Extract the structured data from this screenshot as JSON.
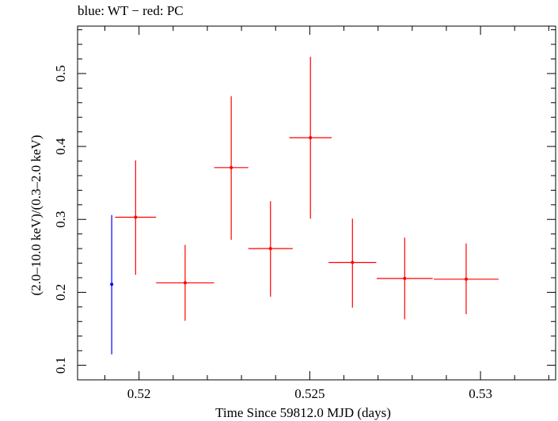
{
  "chart_data": {
    "type": "scatter",
    "title": "blue: WT − red: PC",
    "xlabel": "Time Since 59812.0 MJD (days)",
    "ylabel": "(2.0–10.0 keV)/(0.3–2.0 keV)",
    "xlim": [
      0.5182,
      0.5322
    ],
    "ylim": [
      0.08,
      0.565
    ],
    "xticks": [
      {
        "value": 0.52,
        "label": "0.52"
      },
      {
        "value": 0.525,
        "label": "0.525"
      },
      {
        "value": 0.53,
        "label": "0.53"
      }
    ],
    "yticks": [
      {
        "value": 0.1,
        "label": "0.1"
      },
      {
        "value": 0.2,
        "label": "0.2"
      },
      {
        "value": 0.3,
        "label": "0.3"
      },
      {
        "value": 0.4,
        "label": "0.4"
      },
      {
        "value": 0.5,
        "label": "0.5"
      }
    ],
    "grid": false,
    "series": [
      {
        "name": "WT",
        "color": "#0000ff",
        "points": [
          {
            "x": 0.5192,
            "y": 0.211,
            "xerr": 3e-05,
            "yerr_low": 0.096,
            "yerr_high": 0.095
          }
        ]
      },
      {
        "name": "PC",
        "color": "#ff0000",
        "points": [
          {
            "x": 0.5199,
            "y": 0.303,
            "xerr": 0.0006,
            "yerr_low": 0.079,
            "yerr_high": 0.078
          },
          {
            "x": 0.52135,
            "y": 0.213,
            "xerr": 0.00085,
            "yerr_low": 0.052,
            "yerr_high": 0.052
          },
          {
            "x": 0.5227,
            "y": 0.371,
            "xerr": 0.0005,
            "yerr_low": 0.099,
            "yerr_high": 0.098
          },
          {
            "x": 0.52385,
            "y": 0.26,
            "xerr": 0.00065,
            "yerr_low": 0.066,
            "yerr_high": 0.065
          },
          {
            "x": 0.52502,
            "y": 0.412,
            "xerr": 0.00062,
            "yerr_low": 0.111,
            "yerr_high": 0.111
          },
          {
            "x": 0.52625,
            "y": 0.241,
            "xerr": 0.0007,
            "yerr_low": 0.062,
            "yerr_high": 0.06
          },
          {
            "x": 0.52778,
            "y": 0.219,
            "xerr": 0.00082,
            "yerr_low": 0.056,
            "yerr_high": 0.056
          },
          {
            "x": 0.52958,
            "y": 0.218,
            "xerr": 0.00095,
            "yerr_low": 0.048,
            "yerr_high": 0.049
          }
        ]
      }
    ]
  }
}
